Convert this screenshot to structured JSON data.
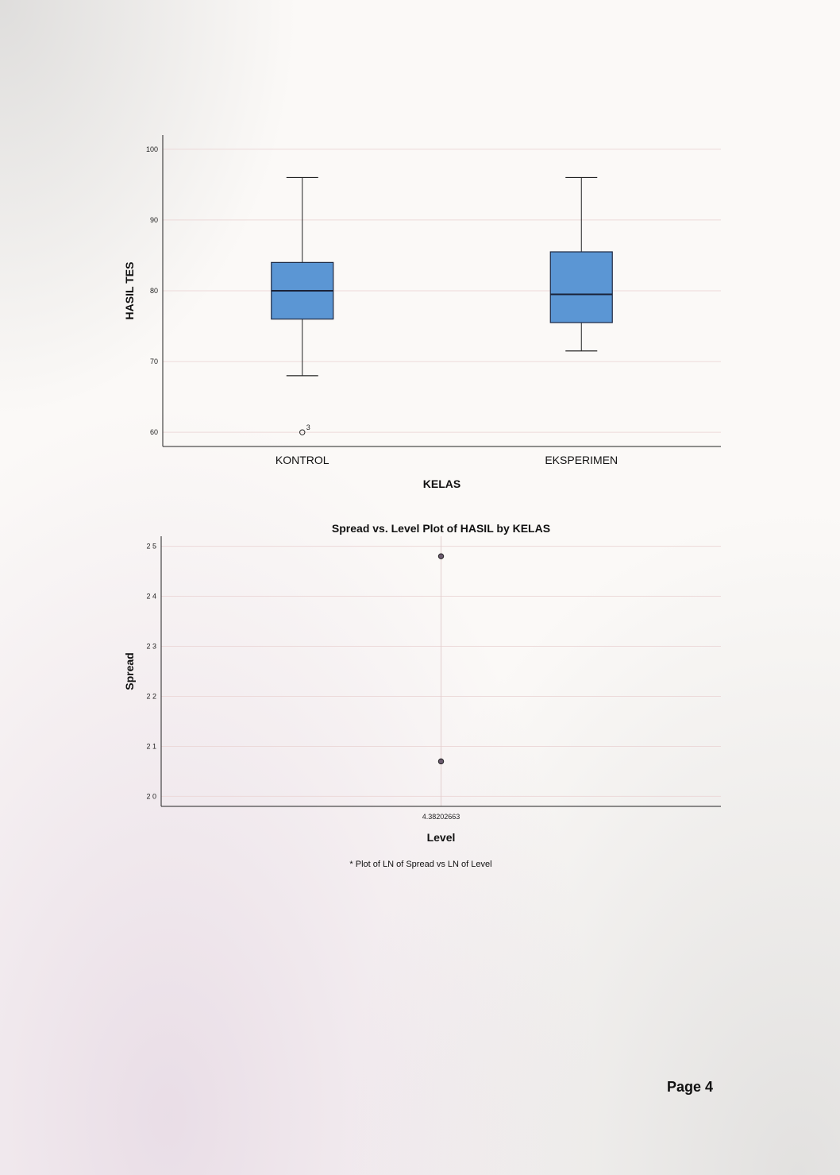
{
  "chart_data": [
    {
      "type": "box",
      "title": "",
      "xlabel": "KELAS",
      "ylabel": "HASIL TES",
      "ylim": [
        58,
        102
      ],
      "yticks": [
        60,
        70,
        80,
        90,
        100
      ],
      "grid": true,
      "box_color": "#5b96d4",
      "categories": [
        "KONTROL",
        "EKSPERIMEN"
      ],
      "boxes": [
        {
          "category": "KONTROL",
          "min": 68,
          "q1": 76,
          "median": 80,
          "q3": 84,
          "max": 96,
          "outliers": [
            {
              "value": 60,
              "label": "3"
            }
          ]
        },
        {
          "category": "EKSPERIMEN",
          "min": 71.5,
          "q1": 75.5,
          "median": 79.5,
          "q3": 85.5,
          "max": 96,
          "outliers": []
        }
      ]
    },
    {
      "type": "scatter",
      "title": "Spread vs. Level Plot of HASIL by KELAS",
      "xlabel": "Level",
      "ylabel": "Spread",
      "ylim": [
        1.98,
        2.52
      ],
      "yticks": [
        2.0,
        2.1,
        2.2,
        2.3,
        2.4,
        2.5
      ],
      "ytick_labels": [
        "2 0",
        "2 1",
        "2 2",
        "2 3",
        "2 4",
        "2 5"
      ],
      "xticks": [
        "4.38202663"
      ],
      "grid": true,
      "points": [
        {
          "x": 4.38202663,
          "y": 2.48
        },
        {
          "x": 4.38202663,
          "y": 2.07
        }
      ]
    }
  ],
  "footnote": "* Plot of LN of Spread vs LN of Level",
  "page_label": "Page 4"
}
